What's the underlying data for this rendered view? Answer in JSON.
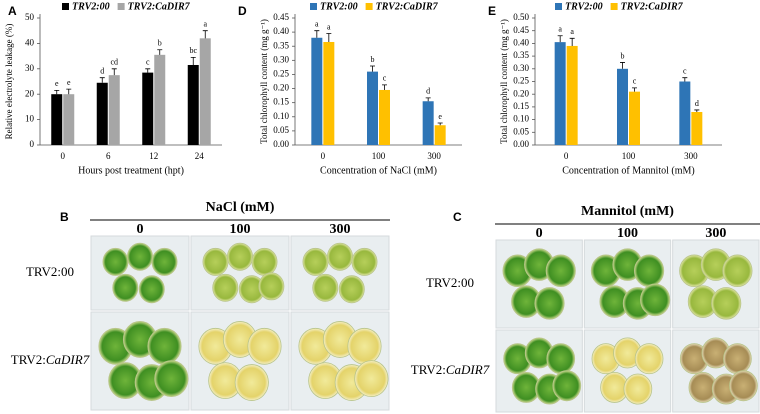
{
  "chart_data": [
    {
      "type": "bar",
      "panel_label": "A",
      "ylabel": "Relative electrolyte leakage (%)",
      "xlabel": "Hours post treatment (hpt)",
      "categories": [
        "0",
        "6",
        "12",
        "24"
      ],
      "series": [
        {
          "name": "TRV2:00",
          "color": "#000000",
          "values": [
            20,
            24.5,
            28.5,
            31.5
          ],
          "errors": [
            1.5,
            2,
            1.5,
            3
          ],
          "letters": [
            "e",
            "d",
            "c",
            "bc"
          ]
        },
        {
          "name": "TRV2:CaDIR7",
          "color": "#a6a6a6",
          "values": [
            20,
            27.5,
            35.5,
            42
          ],
          "errors": [
            2,
            2.5,
            2,
            3
          ],
          "letters": [
            "e",
            "cd",
            "b",
            "a"
          ]
        }
      ],
      "ylim": [
        0,
        50
      ],
      "yticks": [
        0,
        10,
        20,
        30,
        40,
        50
      ],
      "grid": false
    },
    {
      "type": "bar",
      "panel_label": "D",
      "ylabel": "Total chlorophyll content (mg g⁻¹)",
      "xlabel": "Concentration of NaCl (mM)",
      "categories": [
        "0",
        "100",
        "300"
      ],
      "series": [
        {
          "name": "TRV2:00",
          "color": "#2e75b6",
          "values": [
            0.38,
            0.26,
            0.155
          ],
          "errors": [
            0.025,
            0.02,
            0.012
          ],
          "letters": [
            "a",
            "b",
            "d"
          ]
        },
        {
          "name": "TRV2:CaDIR7",
          "color": "#ffc000",
          "values": [
            0.365,
            0.195,
            0.07
          ],
          "errors": [
            0.03,
            0.018,
            0.008
          ],
          "letters": [
            "a",
            "c",
            "e"
          ]
        }
      ],
      "ylim": [
        0,
        0.45
      ],
      "yticks": [
        {
          "value": 0,
          "label": "0.00"
        },
        {
          "value": 0.05,
          "label": "0.05"
        },
        {
          "value": 0.1,
          "label": "0.10"
        },
        {
          "value": 0.15,
          "label": "0.15"
        },
        {
          "value": 0.2,
          "label": "0.20"
        },
        {
          "value": 0.25,
          "label": "0.25"
        },
        {
          "value": 0.3,
          "label": "0.30"
        },
        {
          "value": 0.35,
          "label": "0.35"
        },
        {
          "value": 0.4,
          "label": "0.40"
        },
        {
          "value": 0.45,
          "label": "0.45"
        }
      ],
      "grid": false
    },
    {
      "type": "bar",
      "panel_label": "E",
      "ylabel": "Total chlorophyll content (mg g⁻¹)",
      "xlabel": "Concentration of Mannitol (mM)",
      "categories": [
        "0",
        "100",
        "300"
      ],
      "series": [
        {
          "name": "TRV2:00",
          "color": "#2e75b6",
          "values": [
            0.405,
            0.3,
            0.25
          ],
          "errors": [
            0.025,
            0.025,
            0.015
          ],
          "letters": [
            "a",
            "b",
            "c"
          ]
        },
        {
          "name": "TRV2:CaDIR7",
          "color": "#ffc000",
          "values": [
            0.39,
            0.21,
            0.13
          ],
          "errors": [
            0.03,
            0.015,
            0.008
          ],
          "letters": [
            "a",
            "c",
            "d"
          ]
        }
      ],
      "ylim": [
        0,
        0.5
      ],
      "yticks": [
        {
          "value": 0,
          "label": "0.00"
        },
        {
          "value": 0.05,
          "label": "0.05"
        },
        {
          "value": 0.1,
          "label": "0.10"
        },
        {
          "value": 0.15,
          "label": "0.15"
        },
        {
          "value": 0.2,
          "label": "0.20"
        },
        {
          "value": 0.25,
          "label": "0.25"
        },
        {
          "value": 0.3,
          "label": "0.30"
        },
        {
          "value": 0.35,
          "label": "0.35"
        },
        {
          "value": 0.4,
          "label": "0.40"
        },
        {
          "value": 0.45,
          "label": "0.45"
        },
        {
          "value": 0.5,
          "label": "0.50"
        }
      ],
      "grid": false
    }
  ],
  "photo_panels": [
    {
      "panel_label": "B",
      "title": "NaCl (mM)",
      "columns": [
        "0",
        "100",
        "300"
      ],
      "rows": [
        {
          "plain": "TRV2:00"
        },
        {
          "plain": "TRV2:",
          "italic": "CaDIR7"
        }
      ]
    },
    {
      "panel_label": "C",
      "title": "Mannitol (mM)",
      "columns": [
        "0",
        "100",
        "300"
      ],
      "rows": [
        {
          "plain": "TRV2:00"
        },
        {
          "plain": "TRV2:",
          "italic": "CaDIR7"
        }
      ]
    }
  ]
}
